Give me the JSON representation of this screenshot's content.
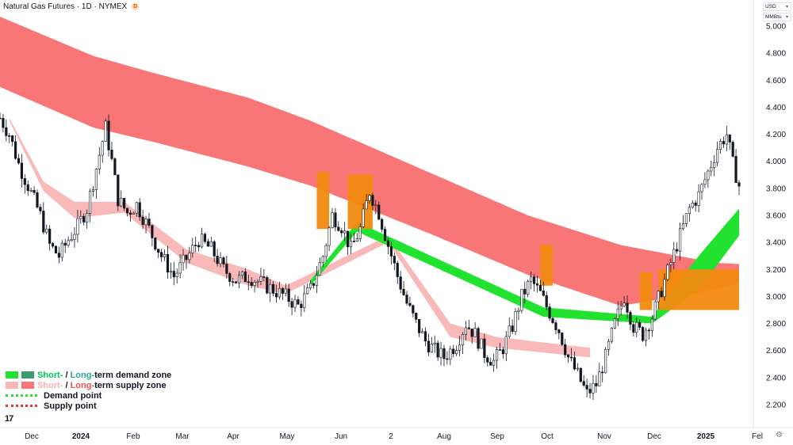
{
  "header": {
    "title": "Natural Gas Futures · 1D · NYMEX",
    "badge": "D",
    "currency": "USD",
    "unit": "MMBtu"
  },
  "legend": {
    "demand_short": "Short-",
    "demand_sep": " / ",
    "demand_long": "Long-",
    "demand_rest": "term demand zone",
    "supply_short": "Short-",
    "supply_sep": " / ",
    "supply_long": "Long-",
    "supply_rest": "term supply zone",
    "demand_point": "Demand point",
    "supply_point": "Supply point"
  },
  "colors": {
    "long_supply": "#f87676",
    "short_supply": "#f9b9b9",
    "demand": "#21e32f",
    "long_demand": "#3b9a6e",
    "transition": "#f28a10",
    "candle": "#131722"
  },
  "chart_data": {
    "type": "candlestick",
    "yticks": [
      "2.200",
      "2.400",
      "2.600",
      "2.800",
      "3.000",
      "3.200",
      "3.400",
      "3.600",
      "3.800",
      "4.000",
      "4.200",
      "4.400",
      "4.600",
      "4.800",
      "5.000"
    ],
    "ylim": [
      2.1,
      5.12
    ],
    "xlabels": [
      "Dec",
      "2024",
      "Feb",
      "Mar",
      "Apr",
      "May",
      "Jun",
      "2",
      "Aug",
      "Sep",
      "Oct",
      "Nov",
      "Dec",
      "2025",
      "Fel"
    ],
    "close_path": [
      [
        0,
        4.32
      ],
      [
        3,
        4.2
      ],
      [
        6,
        3.98
      ],
      [
        9,
        3.82
      ],
      [
        13,
        3.6
      ],
      [
        16,
        3.38
      ],
      [
        19,
        3.3
      ],
      [
        22,
        3.42
      ],
      [
        25,
        3.52
      ],
      [
        28,
        3.65
      ],
      [
        31,
        3.95
      ],
      [
        34,
        4.25
      ],
      [
        36,
        4.0
      ],
      [
        38,
        3.72
      ],
      [
        41,
        3.62
      ],
      [
        44,
        3.68
      ],
      [
        48,
        3.5
      ],
      [
        52,
        3.3
      ],
      [
        56,
        3.15
      ],
      [
        60,
        3.28
      ],
      [
        64,
        3.42
      ],
      [
        68,
        3.35
      ],
      [
        72,
        3.2
      ],
      [
        76,
        3.12
      ],
      [
        80,
        3.15
      ],
      [
        84,
        3.1
      ],
      [
        88,
        3.05
      ],
      [
        92,
        3.0
      ],
      [
        96,
        2.93
      ],
      [
        100,
        3.05
      ],
      [
        104,
        3.3
      ],
      [
        107,
        3.6
      ],
      [
        110,
        3.52
      ],
      [
        113,
        3.35
      ],
      [
        116,
        3.5
      ],
      [
        119,
        3.78
      ],
      [
        122,
        3.62
      ],
      [
        125,
        3.38
      ],
      [
        128,
        3.15
      ],
      [
        131,
        2.95
      ],
      [
        134,
        2.8
      ],
      [
        137,
        2.67
      ],
      [
        140,
        2.6
      ],
      [
        143,
        2.55
      ],
      [
        147,
        2.65
      ],
      [
        150,
        2.8
      ],
      [
        153,
        2.72
      ],
      [
        156,
        2.58
      ],
      [
        159,
        2.52
      ],
      [
        162,
        2.62
      ],
      [
        165,
        2.78
      ],
      [
        168,
        3.0
      ],
      [
        171,
        3.12
      ],
      [
        174,
        3.02
      ],
      [
        177,
        2.88
      ],
      [
        180,
        2.75
      ],
      [
        183,
        2.55
      ],
      [
        186,
        2.42
      ],
      [
        189,
        2.28
      ],
      [
        192,
        2.35
      ],
      [
        195,
        2.55
      ],
      [
        198,
        2.8
      ],
      [
        201,
        3.0
      ],
      [
        204,
        2.78
      ],
      [
        207,
        2.72
      ],
      [
        210,
        2.85
      ],
      [
        213,
        3.05
      ],
      [
        216,
        3.25
      ],
      [
        219,
        3.45
      ],
      [
        222,
        3.65
      ],
      [
        225,
        3.75
      ],
      [
        228,
        3.92
      ],
      [
        231,
        4.1
      ],
      [
        234,
        4.2
      ],
      [
        236,
        3.98
      ],
      [
        238,
        3.82
      ]
    ],
    "long_supply_upper": [
      [
        0,
        5.07
      ],
      [
        30,
        4.78
      ],
      [
        50,
        4.65
      ],
      [
        80,
        4.47
      ],
      [
        100,
        4.3
      ],
      [
        140,
        3.9
      ],
      [
        170,
        3.6
      ],
      [
        200,
        3.38
      ],
      [
        230,
        3.25
      ],
      [
        238,
        3.24
      ]
    ],
    "long_supply_lower": [
      [
        0,
        4.55
      ],
      [
        30,
        4.25
      ],
      [
        50,
        4.14
      ],
      [
        80,
        3.96
      ],
      [
        100,
        3.82
      ],
      [
        140,
        3.45
      ],
      [
        170,
        3.16
      ],
      [
        200,
        2.93
      ],
      [
        230,
        3.05
      ],
      [
        238,
        3.1
      ]
    ],
    "short_supply_upper": [
      [
        3,
        4.32
      ],
      [
        14,
        3.85
      ],
      [
        24,
        3.7
      ],
      [
        40,
        3.7
      ],
      [
        60,
        3.35
      ],
      [
        80,
        3.2
      ],
      [
        92,
        3.08
      ],
      [
        125,
        3.45
      ],
      [
        145,
        2.8
      ],
      [
        160,
        2.7
      ],
      [
        190,
        2.62
      ]
    ],
    "short_supply_lower": [
      [
        3,
        4.3
      ],
      [
        14,
        3.78
      ],
      [
        24,
        3.58
      ],
      [
        40,
        3.62
      ],
      [
        60,
        3.25
      ],
      [
        80,
        3.08
      ],
      [
        92,
        3.02
      ],
      [
        125,
        3.4
      ],
      [
        145,
        2.7
      ],
      [
        160,
        2.62
      ],
      [
        190,
        2.55
      ]
    ],
    "demand_upper": [
      [
        100,
        3.12
      ],
      [
        115,
        3.55
      ],
      [
        175,
        2.92
      ],
      [
        210,
        2.85
      ],
      [
        225,
        3.3
      ],
      [
        238,
        3.65
      ]
    ],
    "demand_lower": [
      [
        100,
        3.08
      ],
      [
        115,
        3.48
      ],
      [
        175,
        2.85
      ],
      [
        210,
        2.8
      ],
      [
        225,
        3.05
      ],
      [
        238,
        3.45
      ]
    ],
    "transition_blocks": [
      [
        102,
        106,
        3.92,
        3.5
      ],
      [
        112,
        120,
        3.9,
        3.5
      ],
      [
        174,
        178,
        3.38,
        3.08
      ],
      [
        206,
        210,
        3.18,
        2.9
      ],
      [
        212,
        238,
        3.2,
        2.9
      ]
    ],
    "highs": [
      4.45,
      4.4,
      3.92,
      3.38,
      2.18,
      4.38
    ]
  },
  "price_axis": {
    "ticks": [
      "5.000",
      "4.800",
      "4.600",
      "4.400",
      "4.200",
      "4.000",
      "3.800",
      "3.600",
      "3.400",
      "3.200",
      "3.000",
      "2.800",
      "2.600",
      "2.400",
      "2.200"
    ]
  }
}
